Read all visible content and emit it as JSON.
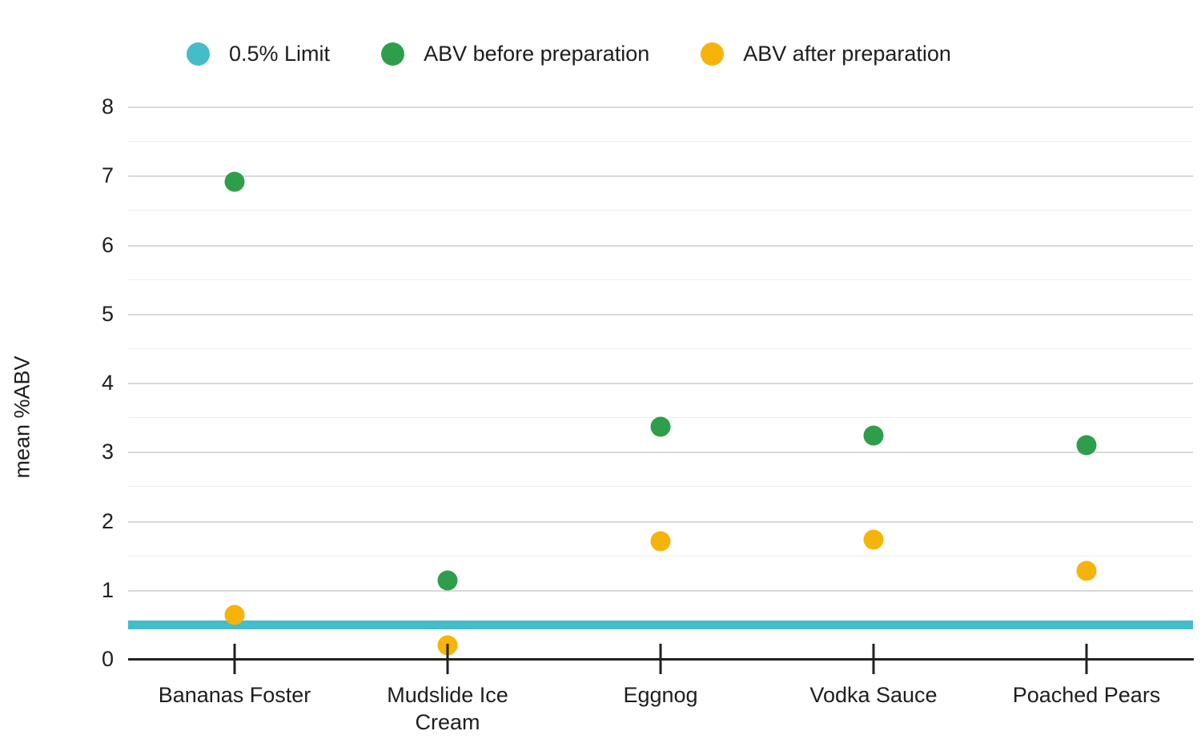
{
  "chart_data": {
    "type": "scatter",
    "title": "",
    "xlabel": "",
    "ylabel": "mean %ABV",
    "ylim": [
      0,
      8
    ],
    "yticks": [
      0,
      1,
      2,
      3,
      4,
      5,
      6,
      7,
      8
    ],
    "minor_gridline_step": 0.5,
    "grid": true,
    "legend_position": "top",
    "categories": [
      "Bananas Foster",
      "Mudslide Ice Cream",
      "Eggnog",
      "Vodka Sauce",
      "Poached Pears"
    ],
    "series": [
      {
        "name": "0.5% Limit",
        "kind": "reference-line",
        "color": "#44bcc9",
        "value": 0.5
      },
      {
        "name": "ABV before preparation",
        "kind": "points",
        "color": "#2f9e4a",
        "values": [
          6.92,
          1.15,
          3.37,
          3.25,
          3.11
        ]
      },
      {
        "name": "ABV after preparation",
        "kind": "points",
        "color": "#f6b40a",
        "values": [
          0.65,
          0.21,
          1.72,
          1.74,
          1.29
        ]
      }
    ],
    "colors": {
      "axis": "#212121",
      "major_grid": "#d9d9d9",
      "minor_grid": "#efefef",
      "text": "#1e1e1e"
    }
  }
}
